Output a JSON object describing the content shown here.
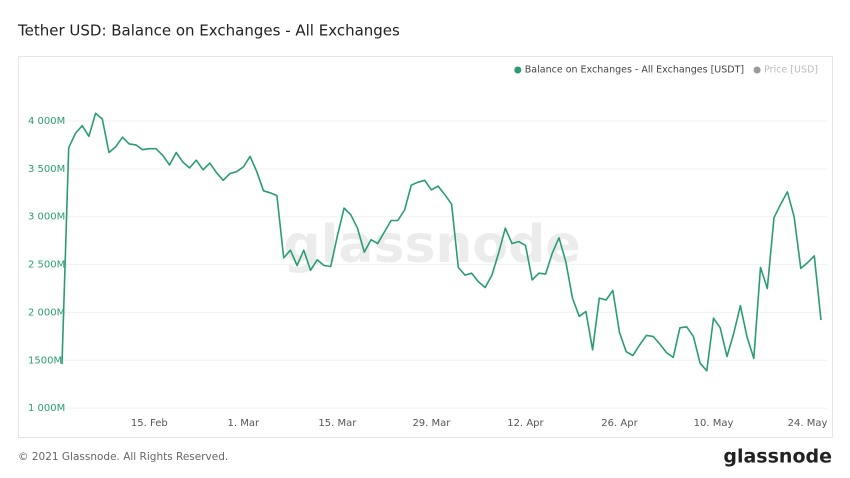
{
  "chart_data": {
    "type": "line",
    "title": "Tether USD: Balance on Exchanges - All Exchanges",
    "watermark": "glassnode",
    "footer": "© 2021 Glassnode. All Rights Reserved.",
    "logo": "glassnode",
    "categories": [
      null,
      null,
      null,
      null,
      null,
      null,
      null,
      null,
      null,
      null,
      null,
      null,
      null,
      "15. Feb",
      null,
      null,
      null,
      null,
      null,
      null,
      null,
      null,
      null,
      null,
      null,
      null,
      null,
      "1. Mar",
      null,
      null,
      null,
      null,
      null,
      null,
      null,
      null,
      null,
      null,
      null,
      null,
      null,
      "15. Mar",
      null,
      null,
      null,
      null,
      null,
      null,
      null,
      null,
      null,
      null,
      null,
      null,
      null,
      "29. Mar",
      null,
      null,
      null,
      null,
      null,
      null,
      null,
      null,
      null,
      null,
      null,
      null,
      null,
      "12. Apr",
      null,
      null,
      null,
      null,
      null,
      null,
      null,
      null,
      null,
      null,
      null,
      null,
      null,
      "26. Apr",
      null,
      null,
      null,
      null,
      null,
      null,
      null,
      null,
      null,
      null,
      null,
      null,
      null,
      "10. May",
      null,
      null,
      null,
      null,
      null,
      null,
      null,
      null,
      null,
      null,
      null,
      null,
      null,
      "24. May",
      null,
      null
    ],
    "series": [
      {
        "name": "Balance on Exchanges - All Exchanges [USDT]",
        "color": "#2a9d70",
        "values": [
          1460,
          3720,
          3870,
          3950,
          3840,
          4080,
          4020,
          3670,
          3730,
          3830,
          3760,
          3750,
          3700,
          3710,
          3710,
          3640,
          3540,
          3670,
          3570,
          3510,
          3590,
          3490,
          3560,
          3460,
          3380,
          3450,
          3470,
          3520,
          3630,
          3470,
          3270,
          3250,
          3220,
          2570,
          2650,
          2490,
          2650,
          2440,
          2550,
          2490,
          2480,
          2800,
          3090,
          3020,
          2880,
          2630,
          2760,
          2720,
          2840,
          2960,
          2960,
          3070,
          3330,
          3360,
          3380,
          3280,
          3320,
          3230,
          3130,
          2470,
          2390,
          2410,
          2320,
          2260,
          2390,
          2620,
          2880,
          2720,
          2740,
          2700,
          2340,
          2410,
          2400,
          2620,
          2780,
          2530,
          2150,
          1960,
          2010,
          1610,
          2150,
          2130,
          2230,
          1790,
          1590,
          1550,
          1660,
          1760,
          1750,
          1670,
          1580,
          1530,
          1840,
          1850,
          1750,
          1470,
          1390,
          1940,
          1840,
          1540,
          1780,
          2070,
          1740,
          1520,
          2470,
          2250,
          2990,
          3130,
          3260,
          3000,
          2460,
          2520,
          2590,
          1920
        ]
      }
    ],
    "hidden_series": [
      {
        "name": "Price [USD]",
        "color": "#9a9a9a"
      }
    ],
    "ylim": [
      960,
      4480
    ],
    "yticks": [
      {
        "value": 1000,
        "label": "1 000M"
      },
      {
        "value": 1500,
        "label": "1500M"
      },
      {
        "value": 2000,
        "label": "2 000M"
      },
      {
        "value": 2500,
        "label": "2 500M"
      },
      {
        "value": 3000,
        "label": "3 000M"
      },
      {
        "value": 3500,
        "label": "3 500M"
      },
      {
        "value": 4000,
        "label": "4 000M"
      }
    ],
    "grid": true
  }
}
